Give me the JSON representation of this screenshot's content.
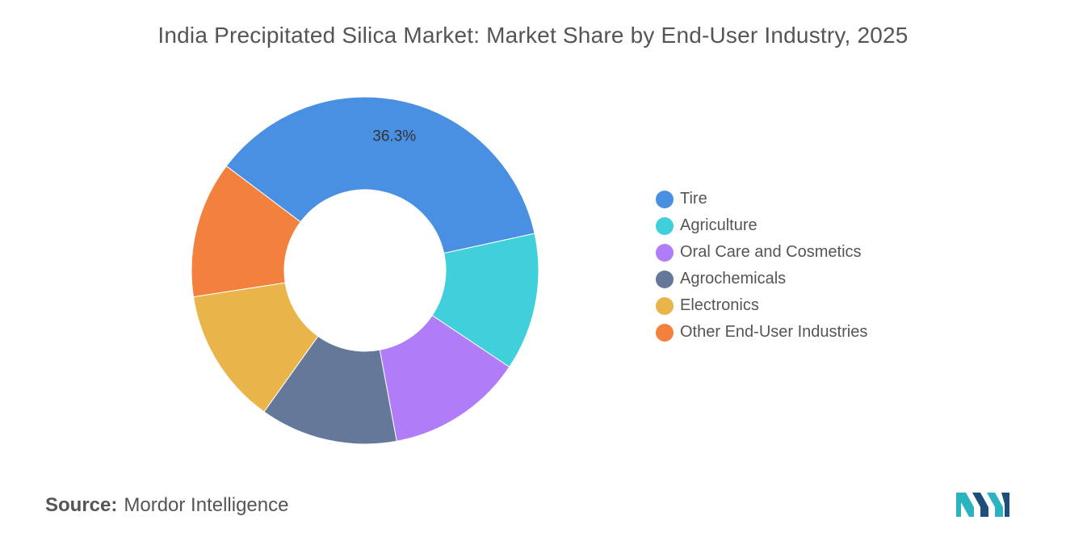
{
  "chart_data": {
    "type": "donut",
    "title": "India Precipitated Silica Market: Market Share by End-User Industry, 2025",
    "categories": [
      "Tire",
      "Agriculture",
      "Oral Care and Cosmetics",
      "Agrochemicals",
      "Electronics",
      "Other End-User Industries"
    ],
    "values": [
      36.3,
      12.8,
      12.7,
      12.8,
      12.7,
      12.7
    ],
    "colors": [
      "#4A90E2",
      "#3FD0DC",
      "#B07CF7",
      "#647899",
      "#E9B54A",
      "#F2813E"
    ],
    "data_labels": [
      "36.3%",
      "",
      "",
      "",
      "",
      ""
    ],
    "legend_position": "right"
  },
  "source": {
    "label": "Source:",
    "text": "Mordor Intelligence"
  },
  "logo": {
    "icon": "mordor-intelligence-logo",
    "colors": [
      "#1F4E79",
      "#2BB3C0"
    ]
  }
}
